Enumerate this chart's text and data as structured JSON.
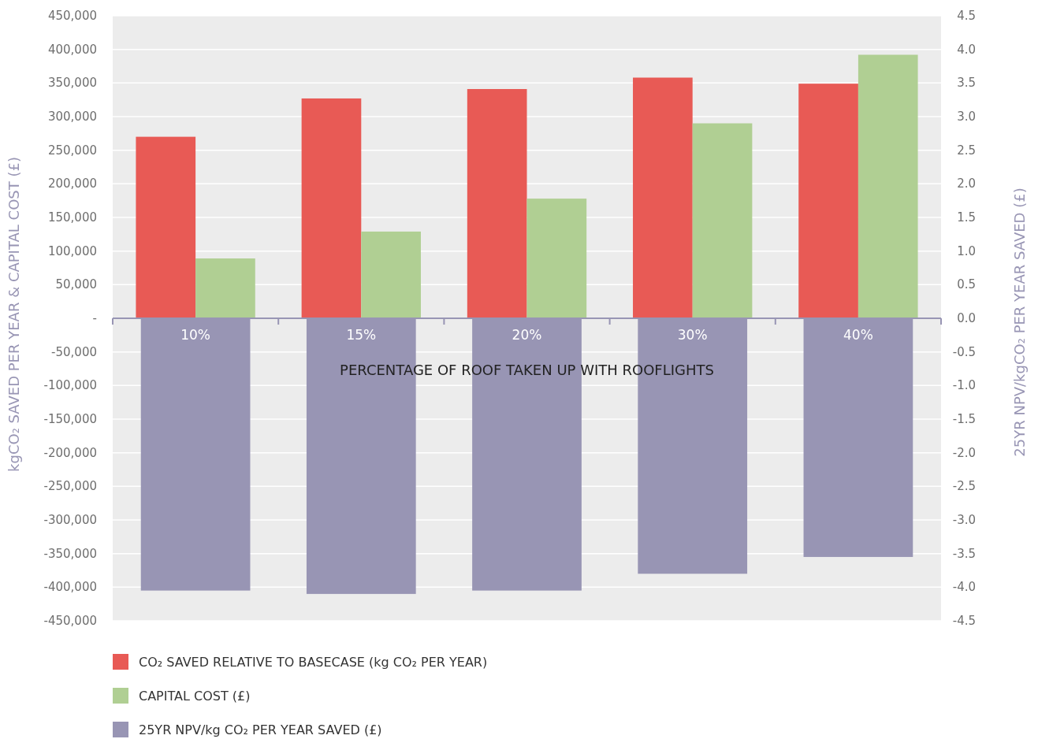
{
  "chart_data": {
    "type": "bar",
    "xlabel": "PERCENTAGE OF ROOF TAKEN UP WITH ROOFLIGHTS",
    "ylabel": "kgCO₂ SAVED PER YEAR & CAPITAL COST (£)",
    "y2label": "25YR NPV/kgCO₂ PER YEAR SAVED (£)",
    "categories": [
      "10%",
      "15%",
      "20%",
      "30%",
      "40%"
    ],
    "series": [
      {
        "name": "CO₂ SAVED RELATIVE TO BASECASE (kg CO₂ PER YEAR)",
        "color": "#e85a55",
        "values": [
          270000,
          327000,
          341000,
          358000,
          349000
        ]
      },
      {
        "name": "CAPITAL COST (£)",
        "color": "#b0cf93",
        "values": [
          89000,
          129000,
          178000,
          290000,
          392000
        ]
      },
      {
        "name": "25YR NPV/kg CO₂ PER YEAR SAVED (£)",
        "color": "#9895b4",
        "axis": "y2",
        "values": [
          -4.05,
          -4.1,
          -4.05,
          -3.8,
          -3.55
        ]
      }
    ],
    "ylim": [
      -450000,
      450000
    ],
    "yticks": [
      {
        "value": -450000,
        "label": "-450,000"
      },
      {
        "value": -400000,
        "label": "-400,000"
      },
      {
        "value": -350000,
        "label": "-350,000"
      },
      {
        "value": -300000,
        "label": "-300,000"
      },
      {
        "value": -250000,
        "label": "-250,000"
      },
      {
        "value": -200000,
        "label": "-200,000"
      },
      {
        "value": -150000,
        "label": "-150,000"
      },
      {
        "value": -100000,
        "label": "-100,000"
      },
      {
        "value": -50000,
        "label": "-50,000"
      },
      {
        "value": 0,
        "label": "-"
      },
      {
        "value": 50000,
        "label": "50,000"
      },
      {
        "value": 100000,
        "label": "100,000"
      },
      {
        "value": 150000,
        "label": "150,000"
      },
      {
        "value": 200000,
        "label": "200,000"
      },
      {
        "value": 250000,
        "label": "250,000"
      },
      {
        "value": 300000,
        "label": "300,000"
      },
      {
        "value": 350000,
        "label": "350,000"
      },
      {
        "value": 400000,
        "label": "400,000"
      },
      {
        "value": 450000,
        "label": "450,000"
      }
    ],
    "y2lim": [
      -4.5,
      4.5
    ],
    "y2ticks": [
      -4.5,
      {
        "value": -4,
        "label": "-4.0"
      },
      -3.5,
      {
        "value": -3,
        "label": "-3.0"
      },
      -2.5,
      {
        "value": -2,
        "label": "-2.0"
      },
      -1.5,
      {
        "value": -1,
        "label": "-1.0"
      },
      -0.5,
      {
        "value": 0,
        "label": "0.0"
      },
      0.5,
      {
        "value": 1,
        "label": "1.0"
      },
      1.5,
      {
        "value": 2,
        "label": "2.0"
      },
      2.5,
      {
        "value": 3,
        "label": "3.0"
      },
      3.5,
      {
        "value": 4,
        "label": "4.0"
      },
      4.5
    ],
    "grid": "y",
    "legend": "bottom"
  }
}
